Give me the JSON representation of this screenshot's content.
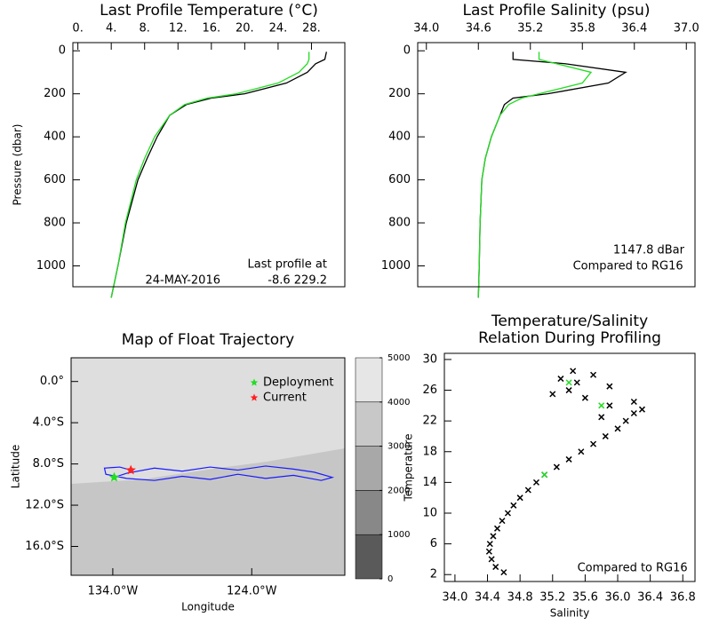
{
  "chart_data": [
    {
      "type": "profile",
      "title": "Last Profile Temperature (°C)",
      "ylabel": "Pressure (dbar)",
      "xlim": [
        -0.6,
        32
      ],
      "xticks": [
        {
          "value": 0,
          "label": "0."
        },
        {
          "value": 4,
          "label": "4."
        },
        {
          "value": 8,
          "label": "8."
        },
        {
          "value": 12,
          "label": "12."
        },
        {
          "value": 16,
          "label": "16."
        },
        {
          "value": 20,
          "label": "20."
        },
        {
          "value": 24,
          "label": "24."
        },
        {
          "value": 28,
          "label": "28."
        }
      ],
      "ylim": [
        -38,
        1097
      ],
      "yticks": [
        0,
        200,
        400,
        600,
        800,
        1000
      ],
      "y": [
        5,
        40,
        60,
        100,
        150,
        200,
        220,
        250,
        300,
        400,
        500,
        600,
        800,
        1000,
        1147.8
      ],
      "series": [
        {
          "color": "#000000",
          "values": [
            29.8,
            29.6,
            28.5,
            27.5,
            25,
            20,
            16,
            13,
            11,
            9.5,
            8.3,
            7.2,
            5.8,
            4.8,
            4.0
          ]
        },
        {
          "color": "#22dd22",
          "values": [
            27.7,
            27.7,
            27.5,
            26.5,
            24,
            19,
            15.5,
            12.8,
            11,
            9.2,
            8,
            7,
            5.7,
            4.8,
            4.0
          ]
        }
      ],
      "annotations": [
        "Last profile at",
        "24-MAY-2016",
        "-8.6 229.2"
      ]
    },
    {
      "type": "profile",
      "title": "Last Profile Salinity (psu)",
      "xlim": [
        33.9,
        37.1
      ],
      "xticks": [
        {
          "value": 34.0,
          "label": "34.0"
        },
        {
          "value": 34.6,
          "label": "34.6"
        },
        {
          "value": 35.2,
          "label": "35.2"
        },
        {
          "value": 35.8,
          "label": "35.8"
        },
        {
          "value": 36.4,
          "label": "36.4"
        },
        {
          "value": 37.0,
          "label": "37.0"
        }
      ],
      "ylim": [
        -38,
        1097
      ],
      "yticks": [
        0,
        200,
        400,
        600,
        800,
        1000
      ],
      "y": [
        5,
        40,
        60,
        100,
        150,
        200,
        220,
        250,
        300,
        400,
        500,
        600,
        800,
        1000,
        1147.8
      ],
      "series": [
        {
          "color": "#000000",
          "values": [
            35.0,
            35.0,
            35.6,
            36.3,
            36.1,
            35.4,
            35.0,
            34.9,
            34.85,
            34.75,
            34.68,
            34.64,
            34.62,
            34.61,
            34.6
          ]
        },
        {
          "color": "#22dd22",
          "values": [
            35.3,
            35.3,
            35.5,
            35.9,
            35.8,
            35.3,
            35.1,
            34.95,
            34.85,
            34.75,
            34.68,
            34.64,
            34.62,
            34.61,
            34.6
          ]
        }
      ],
      "annotations": [
        "1147.8 dBar",
        "Compared to",
        "RG16"
      ]
    },
    {
      "type": "map",
      "title": "Map of Float Trajectory",
      "xlabel": "Longitude",
      "ylabel": "Latitude",
      "xlim": [
        -137,
        -117.3
      ],
      "xticks": [
        {
          "value": -134,
          "label": "134.0°W"
        },
        {
          "value": -124,
          "label": "124.0°W"
        }
      ],
      "ylim": [
        -18.8,
        2.3
      ],
      "yticks": [
        {
          "value": 0,
          "label": "0.0°"
        },
        {
          "value": -4,
          "label": "4.0°S"
        },
        {
          "value": -8,
          "label": "8.0°S"
        },
        {
          "value": -12,
          "label": "12.0°S"
        },
        {
          "value": -16,
          "label": "16.0°S"
        }
      ],
      "trajectory": {
        "color": "#1a1aff",
        "lon": [
          -133.9,
          -133,
          -131,
          -129,
          -127,
          -125,
          -123,
          -121,
          -119.5,
          -118.2,
          -119,
          -121,
          -123,
          -125,
          -127,
          -129,
          -131,
          -133,
          -134.5,
          -134.6,
          -133.5,
          -132.7
        ],
        "lat": [
          -9.3,
          -8.9,
          -8.4,
          -8.7,
          -8.3,
          -8.6,
          -8.2,
          -8.5,
          -8.8,
          -9.3,
          -9.6,
          -9.1,
          -9.4,
          -9.0,
          -9.5,
          -9.2,
          -9.6,
          -9.4,
          -9.0,
          -8.4,
          -8.3,
          -8.6
        ]
      },
      "points": [
        {
          "name": "Deployment",
          "color": "#22dd22",
          "lon": -133.9,
          "lat": -9.3
        },
        {
          "name": "Current",
          "color": "#ff2222",
          "lon": -132.7,
          "lat": -8.6
        }
      ],
      "colorbar": {
        "lim": [
          0,
          5000
        ],
        "ticks": [
          0,
          1000,
          2000,
          3000,
          4000,
          5000
        ],
        "colors": [
          "#5a5a5a",
          "#888888",
          "#a8a8a8",
          "#c8c8c8",
          "#e6e6e6"
        ]
      }
    },
    {
      "type": "scatter",
      "title": "Temperature/Salinity",
      "subtitle": "Relation During Profiling",
      "xlabel": "Salinity",
      "ylabel": "Temperature",
      "xlim": [
        33.87,
        36.95
      ],
      "xticks": [
        {
          "value": 34.0,
          "label": "34.0"
        },
        {
          "value": 34.4,
          "label": "34.4"
        },
        {
          "value": 34.8,
          "label": "34.8"
        },
        {
          "value": 35.2,
          "label": "35.2"
        },
        {
          "value": 35.6,
          "label": "35.6"
        },
        {
          "value": 36.0,
          "label": "36.0"
        },
        {
          "value": 36.4,
          "label": "36.4"
        },
        {
          "value": 36.8,
          "label": "36.8"
        }
      ],
      "ylim": [
        1.1,
        30.8
      ],
      "yticks": [
        2,
        6,
        10,
        14,
        18,
        22,
        26,
        30
      ],
      "series": [
        {
          "color": "#000000",
          "x": [
            34.6,
            34.5,
            34.45,
            34.42,
            34.43,
            34.47,
            34.52,
            34.58,
            34.65,
            34.72,
            34.8,
            34.9,
            35.0,
            35.1,
            35.25,
            35.4,
            35.55,
            35.7,
            35.85,
            36.0,
            36.1,
            36.2,
            35.9,
            35.6,
            35.4,
            35.5,
            35.7,
            35.3,
            35.9,
            36.2,
            35.2,
            35.8,
            36.3,
            35.45
          ],
          "values": [
            2.3,
            3,
            4,
            5,
            6,
            7,
            8,
            9,
            10,
            11,
            12,
            13,
            14,
            15,
            16,
            17,
            18,
            19,
            20,
            21,
            22,
            23,
            24,
            25,
            26,
            27,
            28,
            27.5,
            26.5,
            24.5,
            25.5,
            22.5,
            23.5,
            28.5
          ]
        },
        {
          "color": "#22dd22",
          "x": [
            35.4,
            35.8,
            35.1
          ],
          "values": [
            27,
            24,
            15
          ]
        }
      ],
      "annotations": [
        "Compared to",
        "RG16"
      ]
    }
  ]
}
